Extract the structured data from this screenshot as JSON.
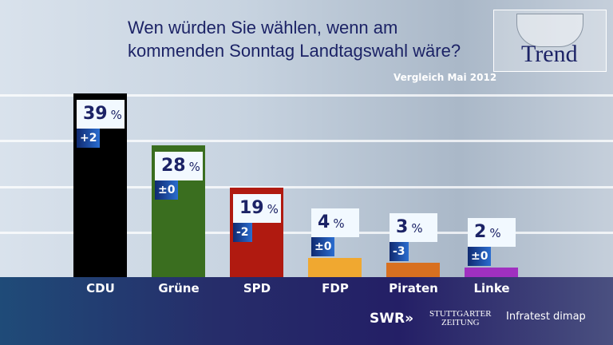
{
  "chart_data": {
    "type": "bar",
    "title": "Wen würden Sie wählen, wenn am kommenden Sonntag Landtagswahl wäre?",
    "title_lines": [
      "Wen würden Sie wählen, wenn am",
      "kommenden Sonntag Landtagswahl wäre?"
    ],
    "subtitle": "Vergleich Mai 2012",
    "categories": [
      "CDU",
      "Grüne",
      "SPD",
      "FDP",
      "Piraten",
      "Linke"
    ],
    "values": [
      39,
      28,
      19,
      4,
      3,
      2
    ],
    "value_labels": [
      "39",
      "28",
      "19",
      "4",
      "3",
      "2"
    ],
    "unit": "%",
    "changes": [
      "+2",
      "±0",
      "-2",
      "±0",
      "-3",
      "±0"
    ],
    "colors": [
      "#000000",
      "#3a6e1f",
      "#b01a10",
      "#f0a830",
      "#d87020",
      "#a030c0"
    ],
    "ylim": [
      0,
      45
    ],
    "grid": true
  },
  "branding": {
    "logo_text": "Trend",
    "swr": "SWR",
    "swr_arrows": "»",
    "stz_line1": "STUTTGARTER",
    "stz_line2": "ZEITUNG",
    "infratest": "Infratest dimap"
  }
}
